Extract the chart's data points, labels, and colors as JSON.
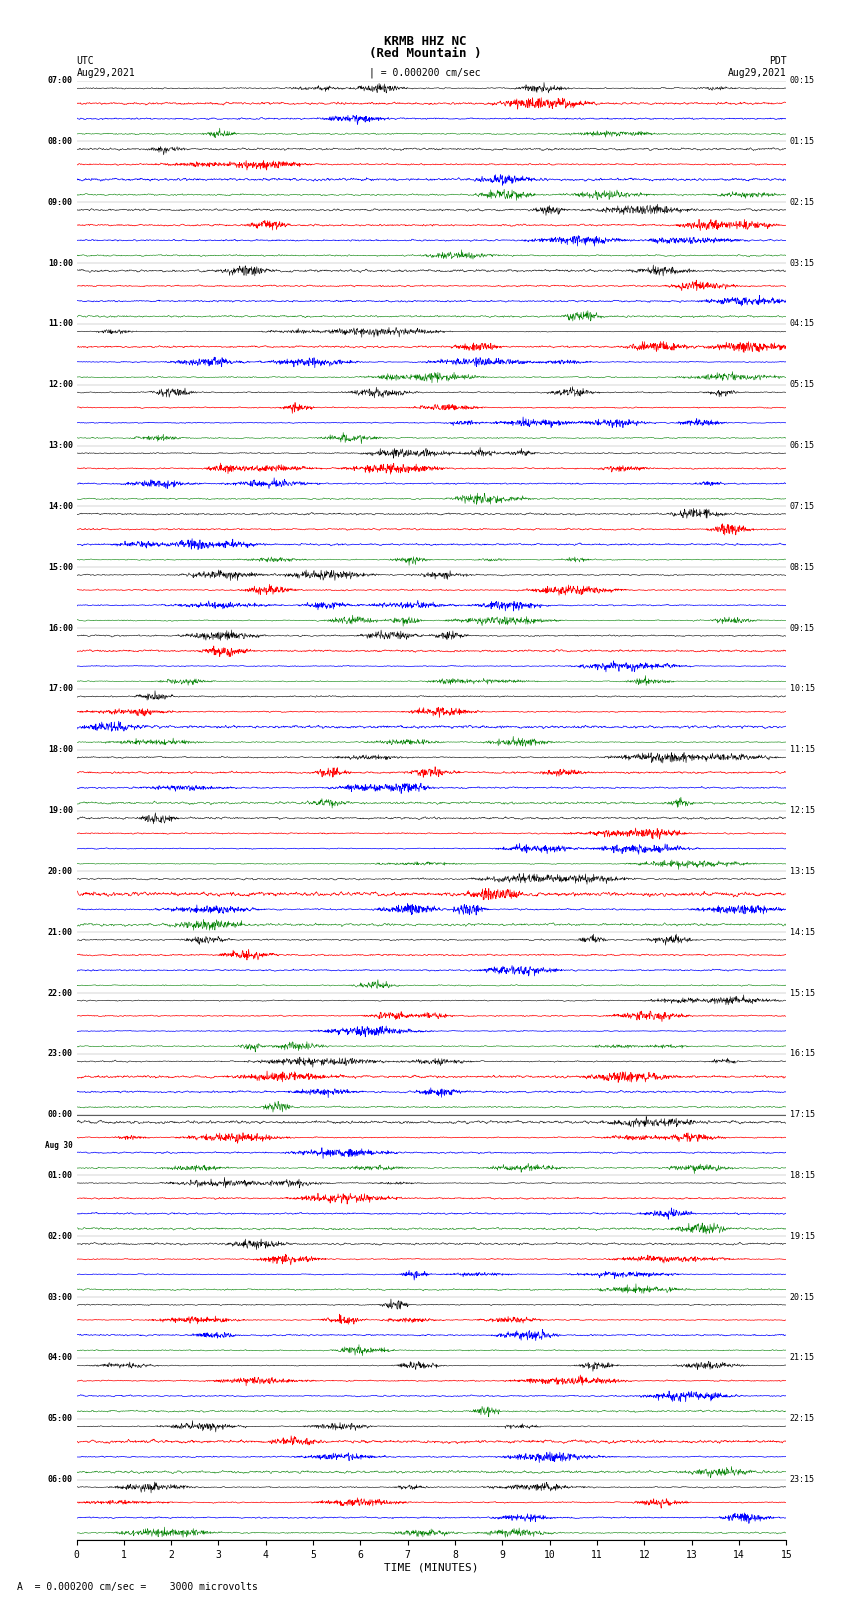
{
  "title_line1": "KRMB HHZ NC",
  "title_line2": "(Red Mountain )",
  "scale_label": "| = 0.000200 cm/sec",
  "bottom_scale": "A  = 0.000200 cm/sec =    3000 microvolts",
  "utc_label": "UTC",
  "utc_date": "Aug29,2021",
  "pdt_label": "PDT",
  "pdt_date": "Aug29,2021",
  "aug30_label": "Aug 30",
  "xlabel": "TIME (MINUTES)",
  "xmin": 0,
  "xmax": 15,
  "xticks": [
    0,
    1,
    2,
    3,
    4,
    5,
    6,
    7,
    8,
    9,
    10,
    11,
    12,
    13,
    14,
    15
  ],
  "trace_colors": [
    "black",
    "red",
    "blue",
    "green"
  ],
  "background_color": "white",
  "fig_width": 8.5,
  "fig_height": 16.13,
  "utc_times": [
    "07:00",
    "08:00",
    "09:00",
    "10:00",
    "11:00",
    "12:00",
    "13:00",
    "14:00",
    "15:00",
    "16:00",
    "17:00",
    "18:00",
    "19:00",
    "20:00",
    "21:00",
    "22:00",
    "23:00",
    "00:00",
    "01:00",
    "02:00",
    "03:00",
    "04:00",
    "05:00",
    "06:00"
  ],
  "pdt_times": [
    "00:15",
    "01:15",
    "02:15",
    "03:15",
    "04:15",
    "05:15",
    "06:15",
    "07:15",
    "08:15",
    "09:15",
    "10:15",
    "11:15",
    "12:15",
    "13:15",
    "14:15",
    "15:15",
    "16:15",
    "17:15",
    "18:15",
    "19:15",
    "20:15",
    "21:15",
    "22:15",
    "23:15"
  ],
  "num_rows": 24,
  "traces_per_row": 4,
  "aug30_row": 17,
  "seed": 42
}
